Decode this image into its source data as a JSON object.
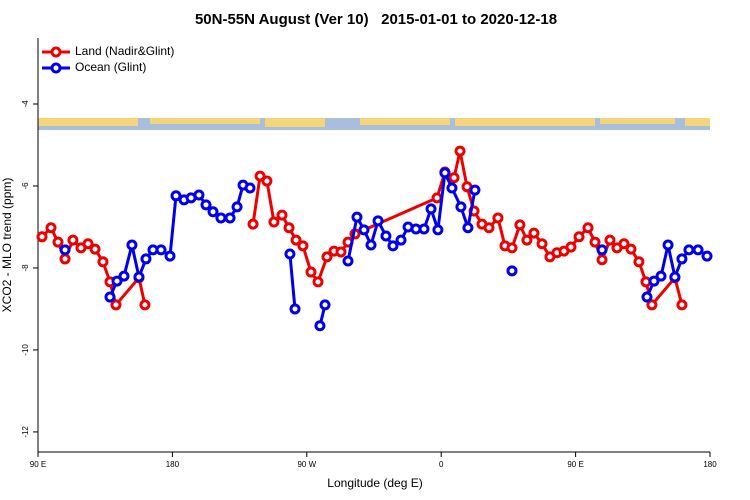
{
  "chart_data": {
    "type": "line",
    "title": "50N-55N August (Ver 10)   2015-01-01 to 2020-12-18",
    "x_label": "Longitude (deg E)",
    "y_label": "XCO2 - MLO trend (ppm)",
    "xlim": [
      90,
      540
    ],
    "xticks": [
      {
        "value": 90,
        "label": "90 E"
      },
      {
        "value": 180,
        "label": "180"
      },
      {
        "value": 270,
        "label": "90 W"
      },
      {
        "value": 360,
        "label": "0"
      },
      {
        "value": 450,
        "label": "90 E"
      },
      {
        "value": 540,
        "label": "180"
      }
    ],
    "ylim": [
      -12.49,
      -2.39
    ],
    "yticks": [
      -4,
      -6,
      -8,
      -10,
      -12
    ],
    "legend": "top-left",
    "series": [
      {
        "name": "Land (Nadir&Glint)",
        "color": "#ee0000",
        "x": [
          92.7,
          98.7,
          103.4,
          108.1,
          113.4,
          118.8,
          123.5,
          128.2,
          133.5,
          138.2,
          142.2,
          157.6,
          161.6,
          null,
          234.0,
          238.7,
          243.3,
          248.0,
          253.4,
          258.1,
          262.8,
          267.4,
          272.8,
          277.5,
          283.5,
          288.2,
          292.9,
          297.6,
          302.3,
          357.2,
          362.5,
          368.6,
          372.6,
          377.3,
          382.0,
          387.3,
          392.0,
          398.0,
          402.7,
          407.4,
          412.7,
          417.4,
          422.1,
          427.5,
          432.8,
          437.5,
          442.2,
          446.9,
          452.3,
          458.3,
          463.0,
          467.7,
          473.0,
          477.7,
          482.4,
          487.1,
          492.4,
          497.1,
          501.1,
          516.5,
          521.2
        ],
        "values": [
          -7.24,
          -7.02,
          -7.37,
          -7.78,
          -7.32,
          -7.51,
          -7.41,
          -7.54,
          -7.85,
          -8.34,
          -8.9,
          -8.24,
          -8.9,
          null,
          -6.93,
          -5.76,
          -5.88,
          -6.88,
          -6.71,
          -7.02,
          -7.32,
          -7.46,
          -8.1,
          -8.34,
          -7.73,
          -7.59,
          -7.61,
          -7.37,
          -7.17,
          -6.29,
          -5.66,
          -5.8,
          -5.15,
          -6.02,
          -6.61,
          -6.93,
          -7.02,
          -6.78,
          -7.46,
          -7.51,
          -6.95,
          -7.32,
          -7.15,
          -7.41,
          -7.73,
          -7.63,
          -7.59,
          -7.49,
          -7.24,
          -7.02,
          -7.37,
          -7.8,
          -7.32,
          -7.51,
          -7.41,
          -7.54,
          -7.85,
          -8.34,
          -8.9,
          -8.24,
          -8.9
        ]
      },
      {
        "name": "Ocean (Glint)",
        "color": "#0000ee",
        "x": [
          108.1,
          null,
          138.2,
          142.9,
          147.6,
          152.9,
          157.6,
          162.3,
          167.0,
          172.4,
          178.4,
          182.4,
          187.8,
          192.5,
          197.8,
          202.5,
          207.2,
          212.5,
          218.6,
          223.3,
          227.3,
          232.0,
          null,
          258.7,
          262.1,
          null,
          278.8,
          282.2,
          null,
          297.6,
          303.6,
          308.3,
          313.0,
          317.7,
          323.0,
          327.7,
          333.1,
          337.8,
          343.1,
          348.5,
          353.2,
          357.8,
          362.5,
          367.2,
          373.2,
          377.9,
          382.6,
          null,
          407.4,
          null,
          467.7,
          null,
          497.8,
          502.5,
          507.2,
          511.9,
          516.5,
          521.2,
          525.9,
          532.0,
          538.0
        ],
        "values": [
          -7.56,
          null,
          -8.71,
          -8.32,
          -8.2,
          -7.44,
          -8.22,
          -7.78,
          -7.56,
          -7.56,
          -7.71,
          -6.24,
          -6.34,
          -6.29,
          -6.22,
          -6.46,
          -6.63,
          -6.78,
          -6.78,
          -6.51,
          -5.98,
          -6.05,
          null,
          -7.66,
          -9.0,
          null,
          -9.41,
          -8.9,
          null,
          -7.83,
          -6.76,
          -7.07,
          -7.44,
          -6.85,
          -7.22,
          -7.46,
          -7.32,
          -7.0,
          -7.05,
          -7.05,
          -6.56,
          -7.07,
          -5.68,
          -6.05,
          -6.51,
          -7.02,
          -6.1,
          null,
          -8.07,
          null,
          -7.56,
          null,
          -8.71,
          -8.32,
          -8.2,
          -7.44,
          -8.22,
          -7.78,
          -7.56,
          -7.56,
          -7.71
        ]
      }
    ]
  }
}
